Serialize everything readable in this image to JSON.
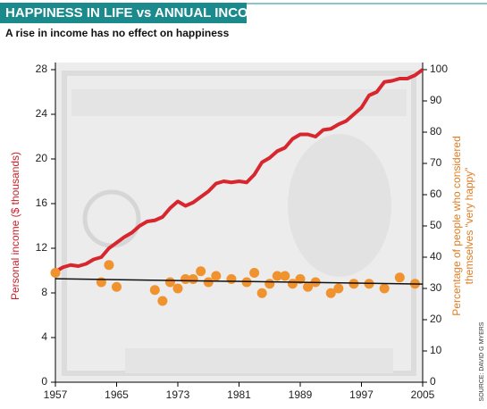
{
  "chart_data": {
    "type": "line",
    "title": "HAPPINESS IN LIFE vs ANNUAL INCOME",
    "subtitle": "A rise in income has no effect on happiness",
    "ylabel": "Personal income ($ thousands)",
    "y2label": [
      "Percentage of people who considered",
      "themselves “very happy”"
    ],
    "source": "SOURCE: DAVID G MYERS",
    "xlim": [
      1957,
      2005
    ],
    "xticks": [
      1957,
      1965,
      1973,
      1981,
      1989,
      1997,
      2005
    ],
    "ylim": [
      0,
      28
    ],
    "yticks": [
      0,
      4,
      8,
      12,
      16,
      20,
      24,
      28
    ],
    "y2lim": [
      0,
      100
    ],
    "y2ticks": [
      0,
      10,
      20,
      30,
      40,
      50,
      60,
      70,
      80,
      90,
      100
    ],
    "series": [
      {
        "name": "Personal income ($ thousands)",
        "type": "line",
        "color": "#d7262d",
        "x": [
          1957,
          1958,
          1959,
          1960,
          1961,
          1962,
          1963,
          1964,
          1965,
          1966,
          1967,
          1968,
          1969,
          1970,
          1971,
          1972,
          1973,
          1974,
          1975,
          1976,
          1977,
          1978,
          1979,
          1980,
          1981,
          1982,
          1983,
          1984,
          1985,
          1986,
          1987,
          1988,
          1989,
          1990,
          1991,
          1992,
          1993,
          1994,
          1995,
          1996,
          1997,
          1998,
          1999,
          2000,
          2001,
          2002,
          2003,
          2004,
          2005
        ],
        "values": [
          9.9,
          10.3,
          10.5,
          10.4,
          10.6,
          11.0,
          11.2,
          12.0,
          12.5,
          13.0,
          13.4,
          14.0,
          14.4,
          14.5,
          14.8,
          15.6,
          16.2,
          15.8,
          16.1,
          16.6,
          17.1,
          17.8,
          18.0,
          17.9,
          18.0,
          17.9,
          18.6,
          19.7,
          20.1,
          20.7,
          21.0,
          21.8,
          22.2,
          22.2,
          22.0,
          22.6,
          22.7,
          23.1,
          23.4,
          24.0,
          24.6,
          25.7,
          26.0,
          26.9,
          27.0,
          27.2,
          27.2,
          27.5,
          28.0
        ]
      },
      {
        "name": "Percentage of people who considered themselves very happy",
        "type": "scatter",
        "axis": "y2",
        "color": "#f0922e",
        "x": [
          1957,
          1963,
          1964,
          1965,
          1970,
          1971,
          1972,
          1973,
          1974,
          1975,
          1976,
          1977,
          1978,
          1980,
          1982,
          1983,
          1984,
          1985,
          1986,
          1987,
          1988,
          1989,
          1990,
          1991,
          1993,
          1994,
          1996,
          1998,
          2000,
          2002,
          2004
        ],
        "values": [
          35,
          32,
          37.5,
          30.5,
          29.5,
          26,
          32,
          30,
          33,
          33,
          35.5,
          32,
          34,
          33,
          32,
          35,
          28.5,
          31.5,
          34,
          34,
          31.5,
          33,
          30.5,
          32,
          28.5,
          30,
          31.5,
          31.5,
          30,
          33.5,
          31.5
        ]
      },
      {
        "type": "trend",
        "axis": "y2",
        "color": "#111111",
        "x": [
          1957,
          2005
        ],
        "values": [
          33.1,
          31.4
        ]
      }
    ]
  }
}
